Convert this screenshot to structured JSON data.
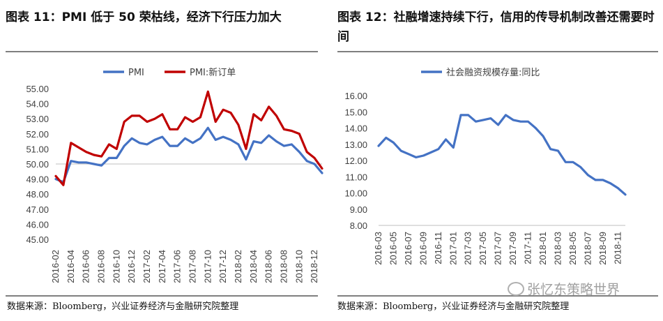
{
  "left_title": "图表 11：PMI 低于 50 荣枯线，经济下行压力加大",
  "right_title": "图表 12：社融增速持续下行，信用的传导机制改善还需要时间",
  "left_source": "数据来源：Bloomberg，兴业证券经济与金融研究院整理",
  "right_source": "数据来源：Bloomberg，兴业证券经济与金融研究院整理",
  "watermark": "张忆东策略世界",
  "colors": {
    "pmi": "#4472c4",
    "new_orders": "#c00000",
    "tsf": "#4472c4",
    "axis": "#bfbfbf"
  },
  "chart_data": [
    {
      "type": "line",
      "title": "",
      "y_ticks": [
        "55.00",
        "54.00",
        "53.00",
        "52.00",
        "51.00",
        "50.00",
        "49.00",
        "48.00",
        "47.00",
        "46.00",
        "45.00"
      ],
      "ylim": [
        45,
        55
      ],
      "x_tick_labels": [
        "2016-02",
        "2016-04",
        "2016-06",
        "2016-08",
        "2016-10",
        "2016-12",
        "2017-02",
        "2017-04",
        "2017-06",
        "2017-08",
        "2017-10",
        "2017-12",
        "2018-02",
        "2018-04",
        "2018-06",
        "2018-08",
        "2018-10",
        "2018-12"
      ],
      "series": [
        {
          "name": "PMI",
          "color": "#4472c4",
          "values": [
            49.0,
            48.8,
            50.2,
            50.1,
            50.1,
            50.0,
            49.9,
            50.4,
            50.4,
            51.2,
            51.7,
            51.4,
            51.3,
            51.6,
            51.8,
            51.2,
            51.2,
            51.7,
            51.4,
            51.7,
            52.4,
            51.6,
            51.8,
            51.6,
            51.3,
            50.3,
            51.5,
            51.4,
            51.9,
            51.5,
            51.2,
            51.3,
            50.8,
            50.2,
            50.0,
            49.4
          ]
        },
        {
          "name": "PMI:新订单",
          "color": "#c00000",
          "values": [
            49.2,
            48.6,
            51.4,
            51.1,
            50.8,
            50.6,
            50.5,
            51.3,
            51.0,
            52.8,
            53.2,
            53.2,
            52.8,
            53.0,
            53.3,
            52.3,
            52.3,
            53.1,
            52.8,
            53.1,
            54.8,
            52.8,
            53.6,
            53.4,
            52.6,
            51.0,
            53.3,
            52.9,
            53.8,
            53.2,
            52.3,
            52.2,
            52.0,
            50.8,
            50.4,
            49.7
          ]
        }
      ]
    },
    {
      "type": "line",
      "title": "",
      "y_ticks": [
        "16.00",
        "15.00",
        "14.00",
        "13.00",
        "12.00",
        "11.00",
        "10.00",
        "9.00",
        "8.00"
      ],
      "ylim": [
        8,
        16
      ],
      "x_tick_labels": [
        "2016-03",
        "2016-05",
        "2016-07",
        "2016-09",
        "2016-11",
        "2017-01",
        "2017-03",
        "2017-05",
        "2017-07",
        "2017-09",
        "2017-11",
        "2018-01",
        "2018-03",
        "2018-05",
        "2018-07",
        "2018-09",
        "2018-11"
      ],
      "series": [
        {
          "name": "社会融资规模存量:同比",
          "color": "#4472c4",
          "values": [
            12.9,
            13.4,
            13.1,
            12.6,
            12.4,
            12.2,
            12.3,
            12.5,
            12.7,
            13.3,
            12.8,
            14.8,
            14.8,
            14.4,
            14.5,
            14.6,
            14.2,
            14.8,
            14.5,
            14.4,
            14.4,
            14.0,
            13.5,
            12.7,
            12.6,
            11.9,
            11.9,
            11.6,
            11.1,
            10.8,
            10.8,
            10.6,
            10.3,
            9.9
          ]
        }
      ]
    }
  ]
}
